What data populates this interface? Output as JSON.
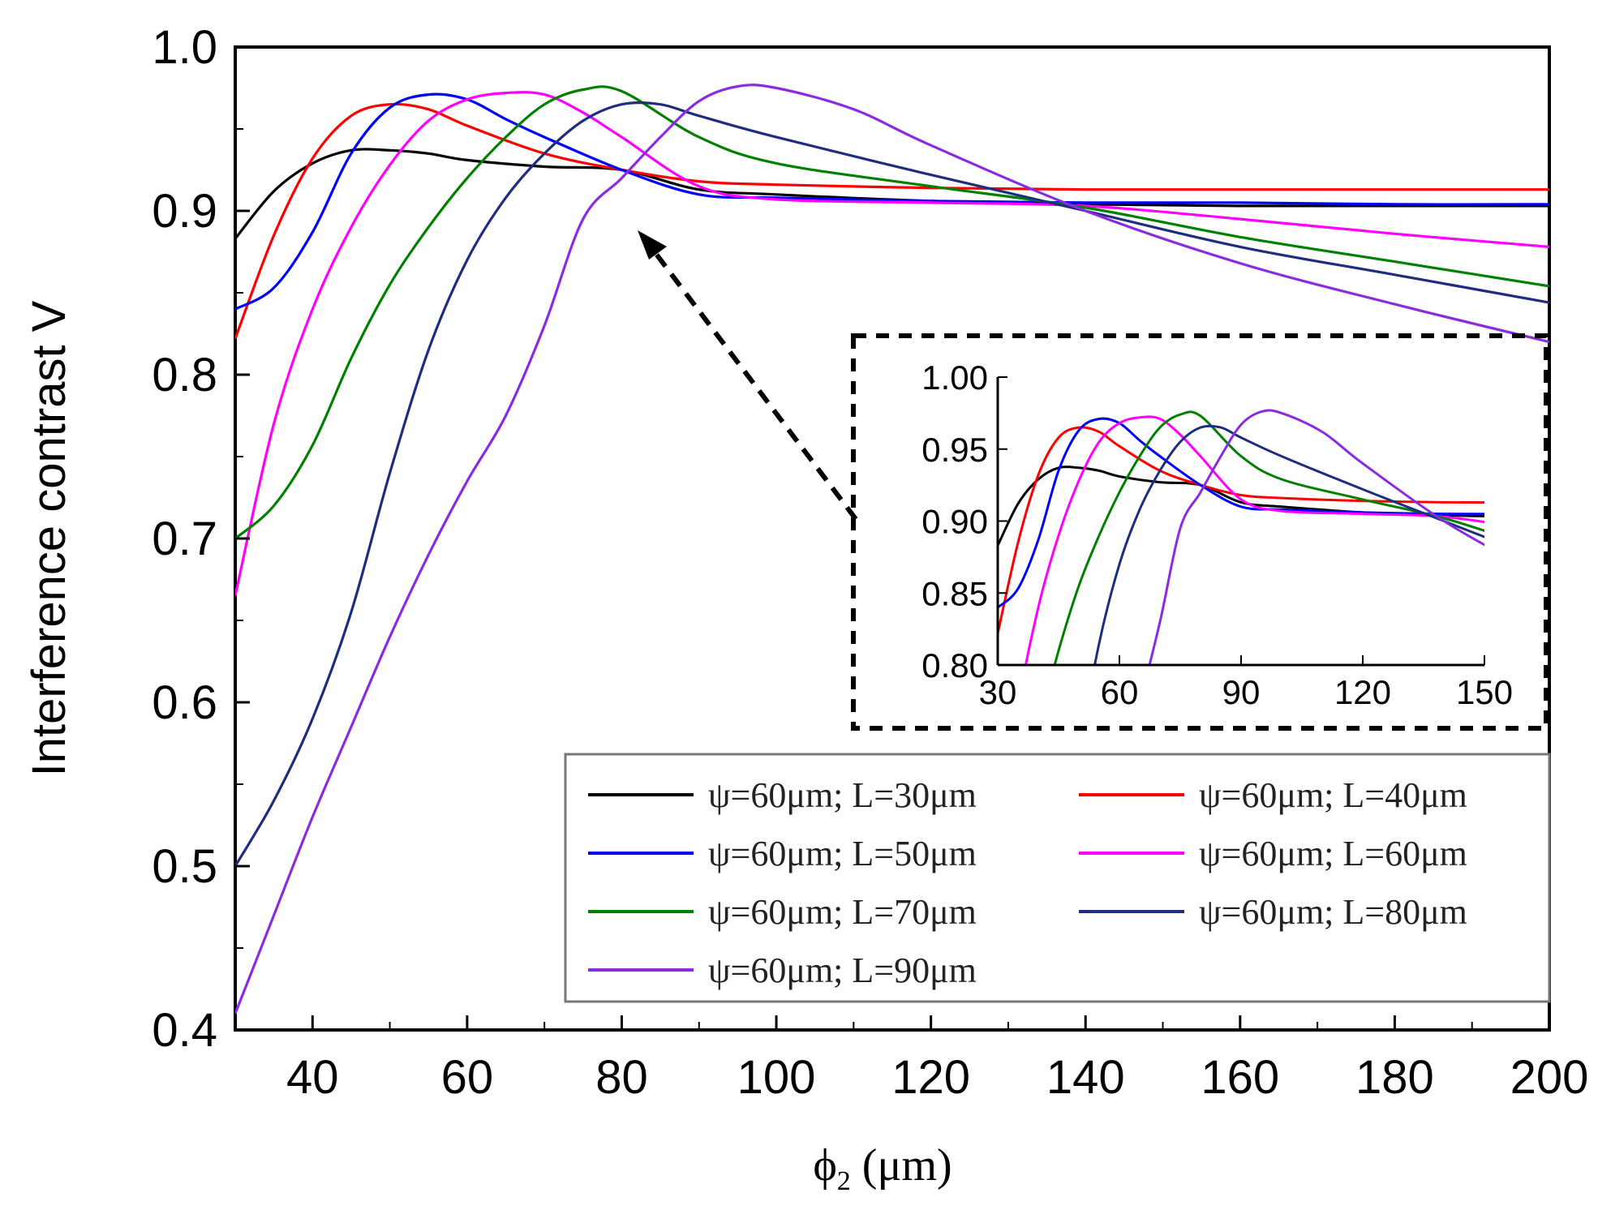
{
  "chart_data": [
    {
      "type": "line",
      "id": "main",
      "xlabel": "ϕ₂ (μm)",
      "xlabel_parts": {
        "symbol": "ϕ",
        "subscript": "2",
        "unit": " (μm)"
      },
      "ylabel": "Interference contrast V",
      "xlim": [
        30,
        200
      ],
      "ylim": [
        0.4,
        1.0
      ],
      "xticks": [
        "40",
        "60",
        "80",
        "100",
        "120",
        "140",
        "160",
        "180",
        "200"
      ],
      "xtick_values": [
        40,
        60,
        80,
        100,
        120,
        140,
        160,
        180,
        200
      ],
      "yticks": [
        "0.4",
        "0.5",
        "0.6",
        "0.7",
        "0.8",
        "0.9",
        "1.0"
      ],
      "ytick_values": [
        0.4,
        0.5,
        0.6,
        0.7,
        0.8,
        0.9,
        1.0
      ],
      "series": [
        {
          "name": "ψ=60μm; L=30μm",
          "color": "#000000",
          "x": [
            30,
            35,
            40,
            45,
            50,
            55,
            60,
            70,
            80,
            90,
            100,
            120,
            140,
            160,
            180,
            200
          ],
          "y": [
            0.883,
            0.912,
            0.929,
            0.937,
            0.937,
            0.935,
            0.931,
            0.927,
            0.925,
            0.913,
            0.91,
            0.906,
            0.904,
            0.903,
            0.903,
            0.903
          ]
        },
        {
          "name": "ψ=60μm; L=40μm",
          "color": "#ff0000",
          "x": [
            30,
            35,
            40,
            45,
            50,
            55,
            60,
            70,
            80,
            90,
            100,
            120,
            140,
            160,
            180,
            200
          ],
          "y": [
            0.822,
            0.885,
            0.932,
            0.958,
            0.965,
            0.962,
            0.952,
            0.935,
            0.925,
            0.918,
            0.916,
            0.914,
            0.913,
            0.913,
            0.913,
            0.913
          ]
        },
        {
          "name": "ψ=60μm; L=50μm",
          "color": "#0000ff",
          "x": [
            30,
            35,
            40,
            45,
            50,
            55,
            60,
            65,
            70,
            80,
            90,
            100,
            120,
            140,
            160,
            180,
            200
          ],
          "y": [
            0.84,
            0.853,
            0.887,
            0.935,
            0.963,
            0.971,
            0.968,
            0.956,
            0.945,
            0.925,
            0.91,
            0.908,
            0.906,
            0.905,
            0.905,
            0.904,
            0.904
          ]
        },
        {
          "name": "ψ=60μm; L=60μm",
          "color": "#ff00ff",
          "x": [
            30,
            35,
            40,
            45,
            50,
            55,
            60,
            65,
            70,
            75,
            80,
            90,
            100,
            120,
            140,
            160,
            180,
            200
          ],
          "y": [
            0.665,
            0.77,
            0.84,
            0.89,
            0.928,
            0.955,
            0.968,
            0.972,
            0.971,
            0.96,
            0.945,
            0.915,
            0.907,
            0.905,
            0.903,
            0.895,
            0.886,
            0.878
          ]
        },
        {
          "name": "ψ=60μm; L=70μm",
          "color": "#008000",
          "x": [
            30,
            35,
            40,
            45,
            50,
            55,
            60,
            65,
            70,
            75,
            80,
            90,
            100,
            120,
            140,
            160,
            180,
            200
          ],
          "y": [
            0.7,
            0.72,
            0.757,
            0.81,
            0.855,
            0.89,
            0.92,
            0.945,
            0.965,
            0.974,
            0.973,
            0.945,
            0.929,
            0.915,
            0.902,
            0.884,
            0.869,
            0.854
          ]
        },
        {
          "name": "ψ=60μm; L=80μm",
          "color": "#1f2d80",
          "x": [
            30,
            35,
            40,
            45,
            50,
            55,
            60,
            65,
            70,
            75,
            80,
            85,
            90,
            100,
            120,
            140,
            160,
            180,
            200
          ],
          "y": [
            0.5,
            0.54,
            0.59,
            0.655,
            0.74,
            0.815,
            0.87,
            0.908,
            0.935,
            0.955,
            0.965,
            0.965,
            0.958,
            0.945,
            0.922,
            0.9,
            0.878,
            0.861,
            0.844
          ]
        },
        {
          "name": "ψ=60μm; L=90μm",
          "color": "#8a2be2",
          "x": [
            30,
            35,
            40,
            45,
            50,
            55,
            60,
            65,
            70,
            75,
            80,
            85,
            90,
            95,
            100,
            110,
            120,
            140,
            160,
            180,
            200
          ],
          "y": [
            0.41,
            0.47,
            0.53,
            0.585,
            0.64,
            0.69,
            0.735,
            0.775,
            0.83,
            0.895,
            0.92,
            0.945,
            0.967,
            0.976,
            0.975,
            0.962,
            0.94,
            0.9,
            0.868,
            0.843,
            0.82
          ]
        }
      ],
      "annotation": "dashed arrow pointing from inset toward curves near ϕ₂ = 80 μm"
    },
    {
      "type": "line",
      "id": "inset",
      "xlim": [
        30,
        150
      ],
      "ylim": [
        0.8,
        1.0
      ],
      "xticks": [
        "30",
        "60",
        "90",
        "120",
        "150"
      ],
      "xtick_values": [
        30,
        60,
        90,
        120,
        150
      ],
      "yticks": [
        "0.80",
        "0.85",
        "0.90",
        "0.95",
        "1.00"
      ],
      "ytick_values": [
        0.8,
        0.85,
        0.9,
        0.95,
        1.0
      ],
      "note": "zoomed view of the same seven series"
    }
  ]
}
